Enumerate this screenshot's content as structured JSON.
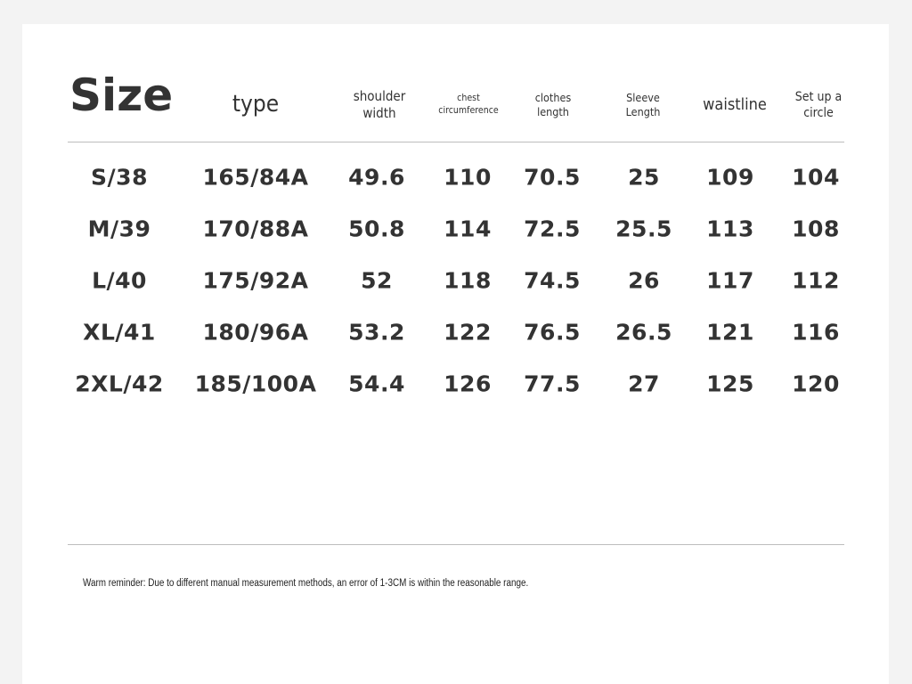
{
  "table": {
    "title": "Size",
    "header": [
      [
        "type"
      ],
      [
        "shoulder",
        "width"
      ],
      [
        "chest",
        "circumference"
      ],
      [
        "clothes",
        "length"
      ],
      [
        "Sleeve",
        "Length"
      ],
      [
        "waistline"
      ],
      [
        "Set up a",
        "circle"
      ]
    ],
    "rows": [
      [
        "S/38",
        "165/84A",
        "49.6",
        "110",
        "70.5",
        "25",
        "109",
        "104"
      ],
      [
        "M/39",
        "170/88A",
        "50.8",
        "114",
        "72.5",
        "25.5",
        "113",
        "108"
      ],
      [
        "L/40",
        "175/92A",
        "52",
        "118",
        "74.5",
        "26",
        "117",
        "112"
      ],
      [
        "XL/41",
        "180/96A",
        "53.2",
        "122",
        "76.5",
        "26.5",
        "121",
        "116"
      ],
      [
        "2XL/42",
        "185/100A",
        "54.4",
        "126",
        "77.5",
        "27",
        "125",
        "120"
      ]
    ]
  },
  "footer": {
    "note": "Warm reminder: Due to different manual measurement methods, an error of 1-3CM is within the reasonable range."
  }
}
